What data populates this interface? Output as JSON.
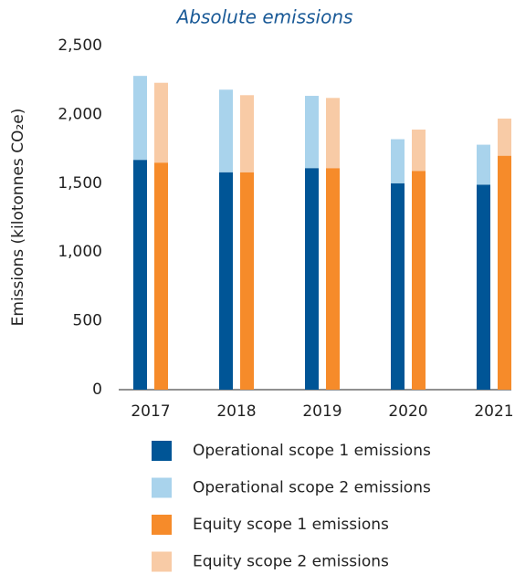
{
  "chart_data": {
    "type": "bar",
    "title": "Absolute emissions",
    "y_label": "Emissions (kilotonnes CO₂e)",
    "categories": [
      "2017",
      "2018",
      "2019",
      "2020",
      "2021"
    ],
    "series": [
      {
        "name": "Operational scope 1 emissions",
        "color": "#005596",
        "values": [
          1670,
          1580,
          1610,
          1500,
          1490
        ]
      },
      {
        "name": "Operational scope 2 emissions",
        "color": "#a9d3ec",
        "values": [
          610,
          600,
          525,
          320,
          290
        ]
      },
      {
        "name": "Equity scope 1 emissions",
        "color": "#f68b2a",
        "values": [
          1650,
          1580,
          1610,
          1590,
          1700
        ]
      },
      {
        "name": "Equity scope 2 emissions",
        "color": "#f8cba6",
        "values": [
          580,
          560,
          510,
          300,
          270
        ]
      }
    ],
    "ylim": [
      0,
      2500
    ],
    "yticks": [
      0,
      500,
      {
        "value": 1000,
        "label": "1,000"
      },
      {
        "value": 1500,
        "label": "1,500"
      },
      {
        "value": 2000,
        "label": "2,000"
      },
      {
        "value": 2500,
        "label": "2,500"
      }
    ],
    "grid": false
  }
}
